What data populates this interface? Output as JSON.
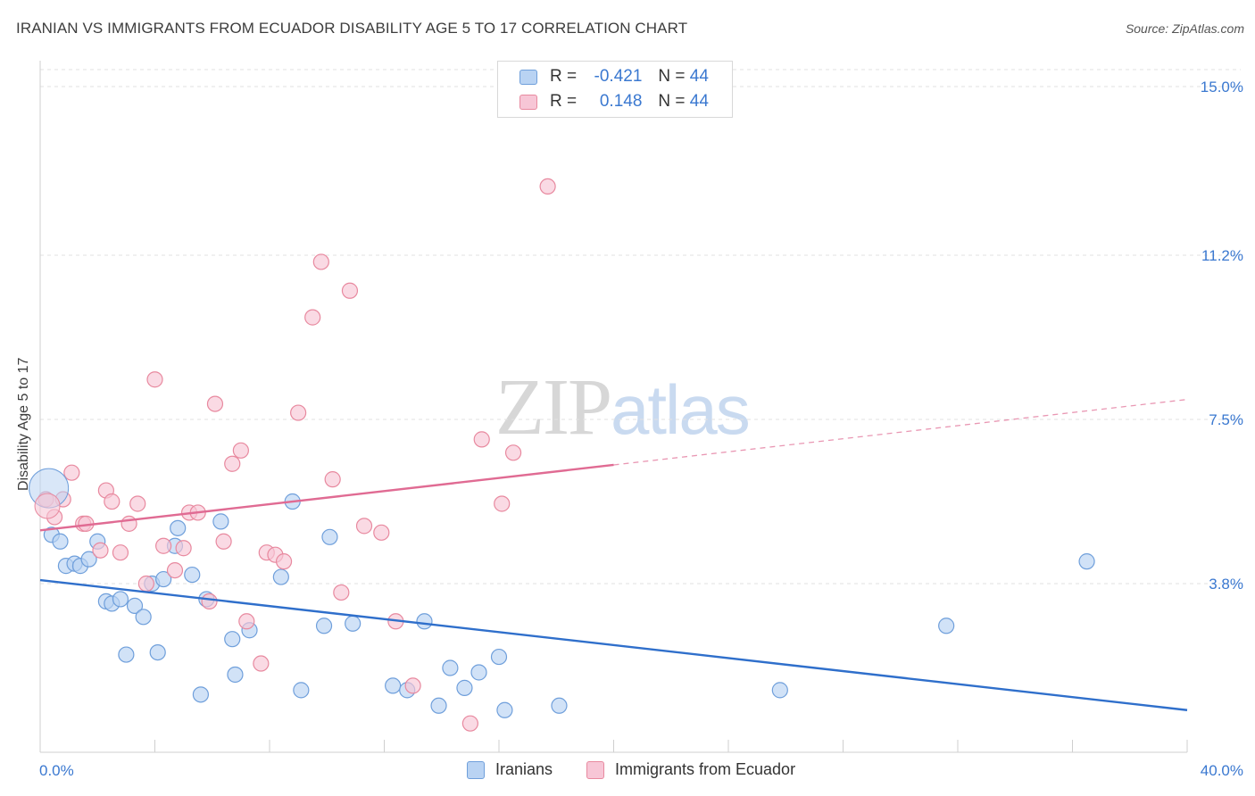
{
  "header": {
    "title": "IRANIAN VS IMMIGRANTS FROM ECUADOR DISABILITY AGE 5 TO 17 CORRELATION CHART",
    "source": "Source: ZipAtlas.com"
  },
  "watermark": {
    "zip": "ZIP",
    "atlas": "atlas"
  },
  "legend_top": {
    "rows": [
      {
        "r_label": "R =",
        "r_value": "-0.421",
        "n_label": "N =",
        "n_value": "44"
      },
      {
        "r_label": "R =",
        "r_value": "0.148",
        "n_label": "N =",
        "n_value": "44"
      }
    ]
  },
  "legend_bottom": {
    "series1": "Iranians",
    "series2": "Immigrants from Ecuador"
  },
  "colors": {
    "blue_fill": "#b9d3f3",
    "blue_stroke": "#6f9fdb",
    "blue_line": "#2f6fcb",
    "pink_fill": "#f7c6d6",
    "pink_stroke": "#e8899f",
    "pink_line": "#e06b93",
    "tick_text": "#3a78d0",
    "grid": "#e2e2e2"
  },
  "chart_data": {
    "type": "scatter",
    "title": "IRANIAN VS IMMIGRANTS FROM ECUADOR DISABILITY AGE 5 TO 17 CORRELATION CHART",
    "xlabel": "",
    "ylabel": "Disability Age 5 to 17",
    "xlim": [
      0,
      40
    ],
    "ylim": [
      0,
      15
    ],
    "x_tick_labels": [
      "0.0%",
      "40.0%"
    ],
    "y_ticks": [
      3.8,
      7.5,
      11.2,
      15.0
    ],
    "y_tick_labels": [
      "3.8%",
      "7.5%",
      "11.2%",
      "15.0%"
    ],
    "grid": true,
    "legend": "bottom",
    "series": [
      {
        "name": "Iranians",
        "trend": {
          "x0": 0,
          "y0": 3.88,
          "x1": 40,
          "y1": 0.95,
          "solid_until": 40
        },
        "points": [
          [
            0.4,
            4.9
          ],
          [
            0.7,
            4.75
          ],
          [
            0.9,
            4.2
          ],
          [
            1.2,
            4.25
          ],
          [
            1.4,
            4.2
          ],
          [
            1.7,
            4.35
          ],
          [
            2.0,
            4.75
          ],
          [
            2.3,
            3.4
          ],
          [
            2.5,
            3.35
          ],
          [
            2.8,
            3.45
          ],
          [
            3.0,
            2.2
          ],
          [
            3.3,
            3.3
          ],
          [
            3.6,
            3.05
          ],
          [
            3.9,
            3.8
          ],
          [
            4.1,
            2.25
          ],
          [
            4.3,
            3.9
          ],
          [
            4.7,
            4.65
          ],
          [
            4.8,
            5.05
          ],
          [
            5.3,
            4.0
          ],
          [
            5.6,
            1.3
          ],
          [
            5.8,
            3.45
          ],
          [
            6.3,
            5.2
          ],
          [
            6.7,
            2.55
          ],
          [
            6.8,
            1.75
          ],
          [
            7.3,
            2.75
          ],
          [
            8.4,
            3.95
          ],
          [
            8.8,
            5.65
          ],
          [
            9.1,
            1.4
          ],
          [
            9.9,
            2.85
          ],
          [
            10.1,
            4.85
          ],
          [
            10.9,
            2.9
          ],
          [
            12.3,
            1.5
          ],
          [
            12.8,
            1.4
          ],
          [
            13.4,
            2.95
          ],
          [
            13.9,
            1.05
          ],
          [
            14.3,
            1.9
          ],
          [
            14.8,
            1.45
          ],
          [
            15.3,
            1.8
          ],
          [
            16.0,
            2.15
          ],
          [
            16.2,
            0.95
          ],
          [
            18.1,
            1.05
          ],
          [
            25.8,
            1.4
          ],
          [
            31.6,
            2.85
          ],
          [
            36.5,
            4.3
          ]
        ]
      },
      {
        "name": "Immigrants from Ecuador",
        "trend": {
          "x0": 0,
          "y0": 5.0,
          "x1": 40,
          "y1": 7.95,
          "solid_until": 20
        },
        "points": [
          [
            0.2,
            5.7
          ],
          [
            0.5,
            5.3
          ],
          [
            0.8,
            5.7
          ],
          [
            1.1,
            6.3
          ],
          [
            1.5,
            5.15
          ],
          [
            1.6,
            5.15
          ],
          [
            2.1,
            4.55
          ],
          [
            2.3,
            5.9
          ],
          [
            2.5,
            5.65
          ],
          [
            2.8,
            4.5
          ],
          [
            3.1,
            5.15
          ],
          [
            3.4,
            5.6
          ],
          [
            3.7,
            3.8
          ],
          [
            4.0,
            8.4
          ],
          [
            4.3,
            4.65
          ],
          [
            4.7,
            4.1
          ],
          [
            5.0,
            4.6
          ],
          [
            5.2,
            5.4
          ],
          [
            5.5,
            5.4
          ],
          [
            5.9,
            3.4
          ],
          [
            6.1,
            7.85
          ],
          [
            6.4,
            4.75
          ],
          [
            6.7,
            6.5
          ],
          [
            7.0,
            6.8
          ],
          [
            7.2,
            2.95
          ],
          [
            7.7,
            2.0
          ],
          [
            7.9,
            4.5
          ],
          [
            8.2,
            4.45
          ],
          [
            8.5,
            4.3
          ],
          [
            9.0,
            7.65
          ],
          [
            9.5,
            9.8
          ],
          [
            9.8,
            11.05
          ],
          [
            10.2,
            6.15
          ],
          [
            10.5,
            3.6
          ],
          [
            10.8,
            10.4
          ],
          [
            11.3,
            5.1
          ],
          [
            11.9,
            4.95
          ],
          [
            12.4,
            2.95
          ],
          [
            13.0,
            1.5
          ],
          [
            15.0,
            0.65
          ],
          [
            15.4,
            7.05
          ],
          [
            16.1,
            5.6
          ],
          [
            16.5,
            6.75
          ],
          [
            17.7,
            12.75
          ]
        ]
      }
    ]
  }
}
